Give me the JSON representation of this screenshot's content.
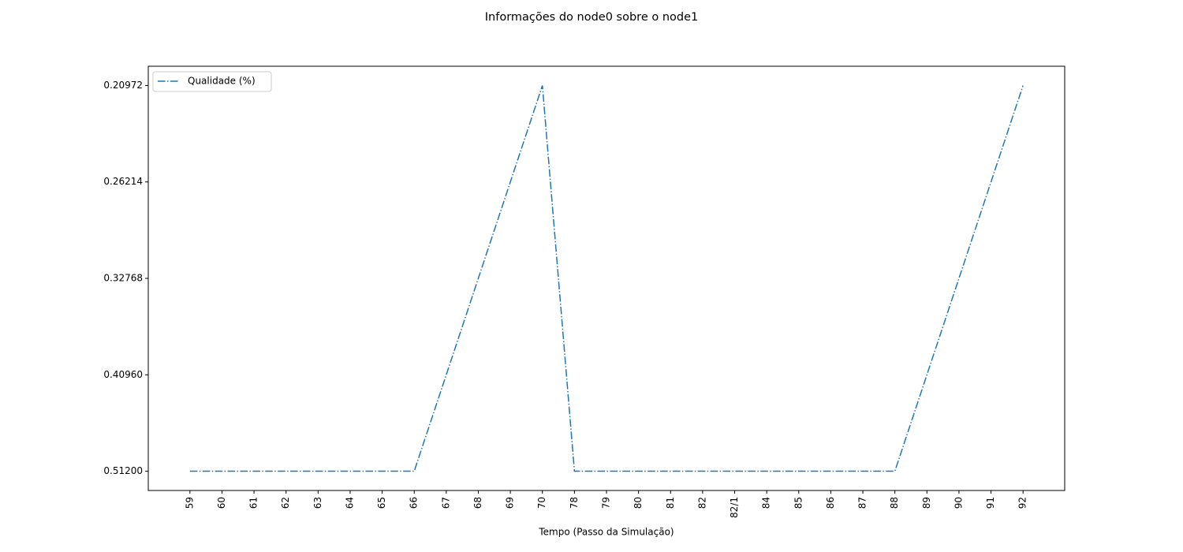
{
  "chart_data": {
    "type": "line",
    "title": "Informações do node0 sobre o node1",
    "x_label": "Tempo (Passo da Simulação)",
    "categories": [
      "59",
      "60",
      "61",
      "62",
      "63",
      "64",
      "65",
      "66",
      "67",
      "68",
      "69",
      "70",
      "78",
      "79",
      "80",
      "81",
      "82",
      "82/1",
      "84",
      "85",
      "86",
      "87",
      "88",
      "89",
      "90",
      "91",
      "92"
    ],
    "series": [
      {
        "name": "Qualidade (%)",
        "color": "#1f77b4",
        "values": [
          0.512,
          0.512,
          0.512,
          0.512,
          0.512,
          0.512,
          0.512,
          0.512,
          0.4096,
          0.32768,
          0.26214,
          0.20972,
          0.512,
          0.512,
          0.512,
          0.512,
          0.512,
          0.512,
          0.512,
          0.512,
          0.512,
          0.512,
          0.512,
          0.4096,
          0.32768,
          0.26214,
          0.20972
        ]
      }
    ],
    "y_scale": "categorical",
    "yticks": [
      {
        "value": 0.512,
        "label": "0.51200"
      },
      {
        "value": 0.4096,
        "label": "0.40960"
      },
      {
        "value": 0.32768,
        "label": "0.32768"
      },
      {
        "value": 0.26214,
        "label": "0.26214"
      },
      {
        "value": 0.20972,
        "label": "0.20972"
      }
    ],
    "legend": "upper left",
    "grid": false
  }
}
